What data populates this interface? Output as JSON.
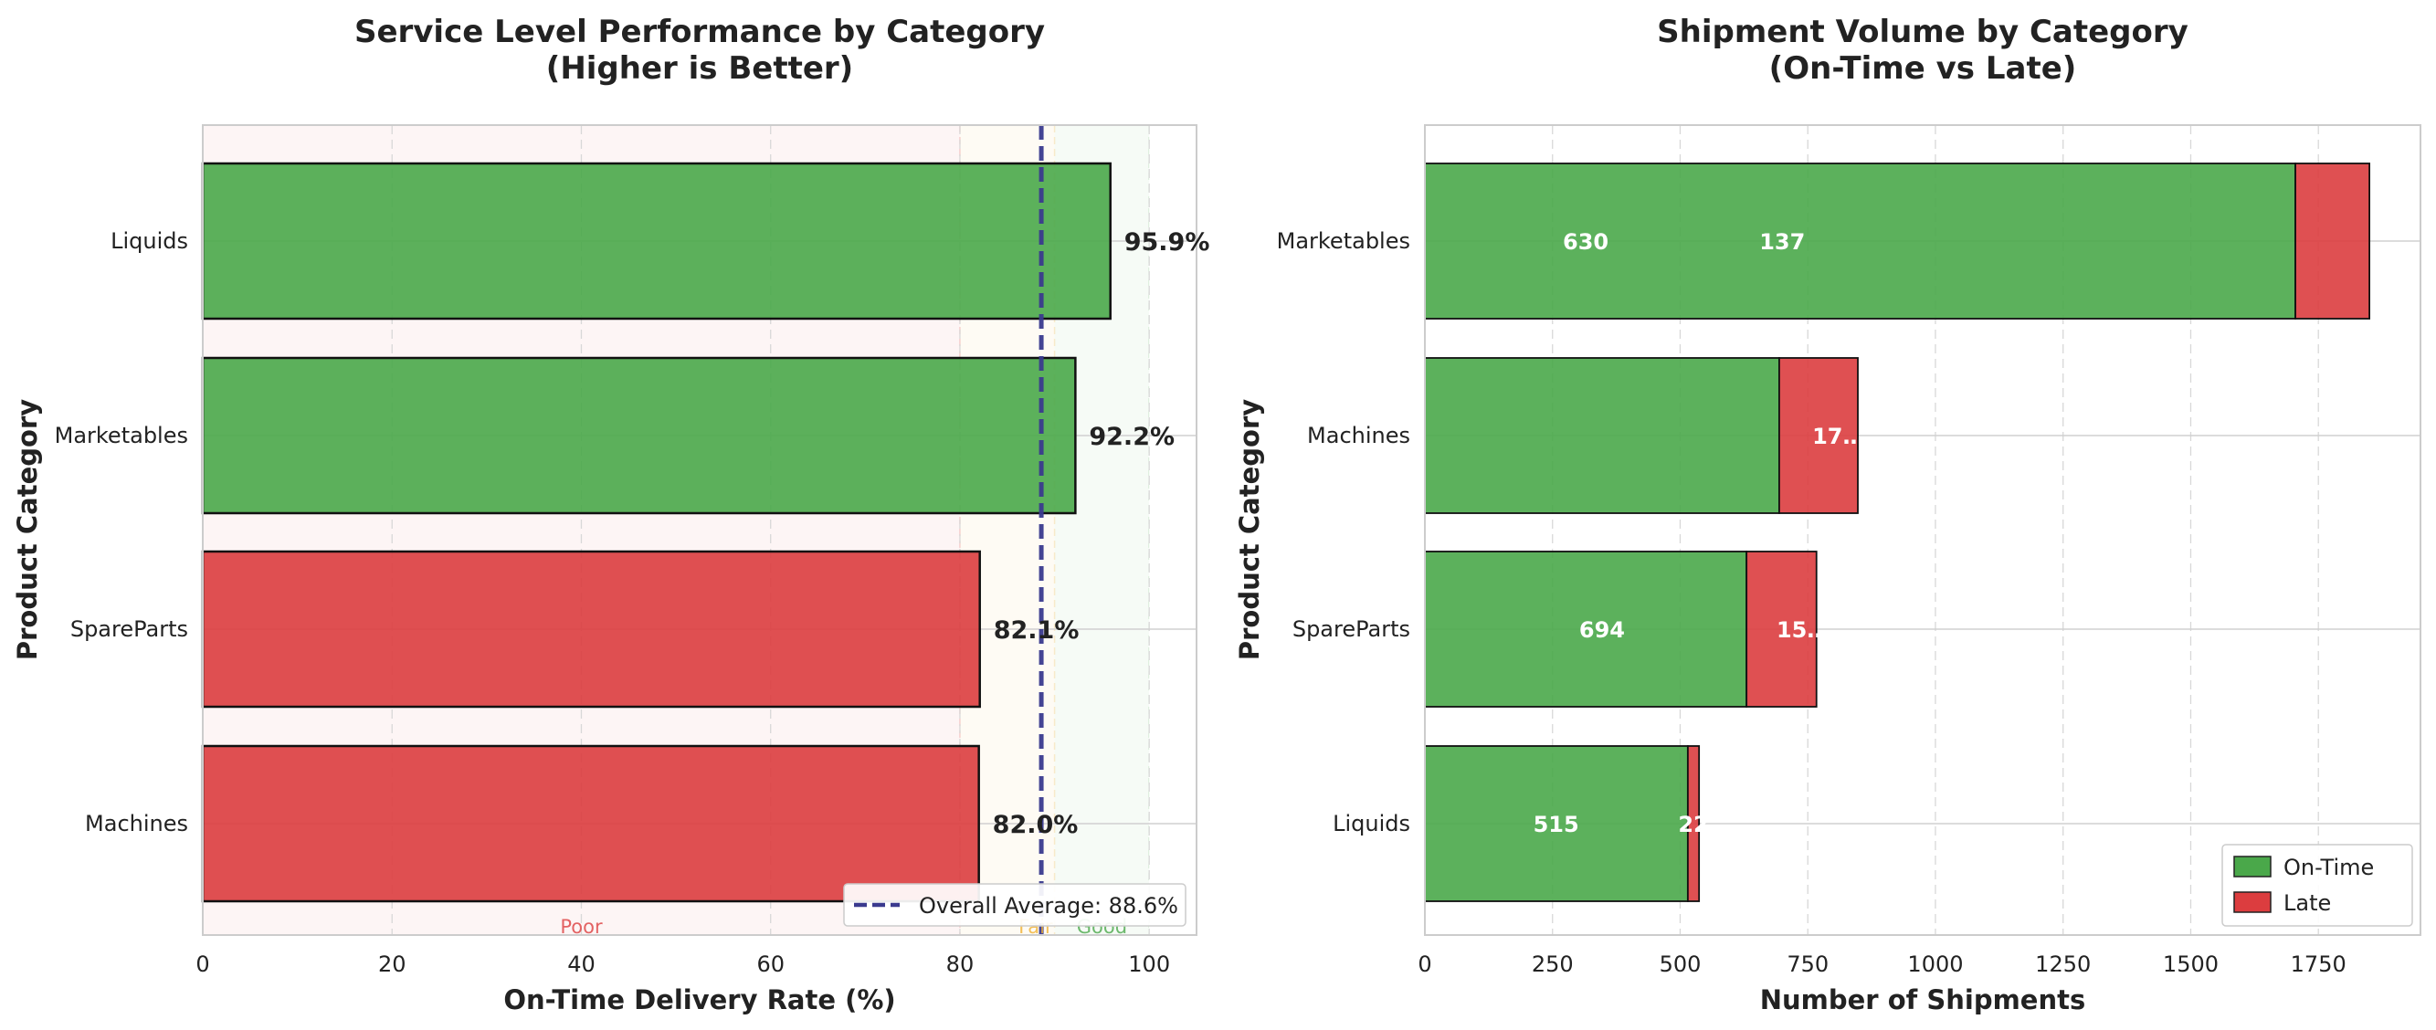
{
  "chart_data": [
    {
      "type": "bar",
      "orientation": "horizontal",
      "title_line1": "Service Level Performance by Category",
      "title_line2": "(Higher is Better)",
      "xlabel": "On-Time Delivery Rate (%)",
      "ylabel": "Product Category",
      "categories": [
        "Liquids",
        "Marketables",
        "SpareParts",
        "Machines"
      ],
      "values": [
        95.9,
        92.2,
        82.1,
        82.0
      ],
      "value_labels": [
        "95.9%",
        "92.2%",
        "82.1%",
        "82.0%"
      ],
      "bar_colors": [
        "#4aa84a",
        "#4aa84a",
        "#dc3d3f",
        "#dc3d3f"
      ],
      "xlim": [
        0,
        105
      ],
      "xticks": [
        0,
        20,
        40,
        60,
        80,
        100
      ],
      "xtick_labels": [
        "0",
        "20",
        "40",
        "60",
        "80",
        "100"
      ],
      "zones": [
        {
          "label": "Poor",
          "from": 0,
          "to": 80,
          "color": "#dc3d3f"
        },
        {
          "label": "Fair",
          "from": 80,
          "to": 90,
          "color": "#f0b030"
        },
        {
          "label": "Good",
          "from": 90,
          "to": 100,
          "color": "#4aa84a"
        }
      ],
      "average": 88.6,
      "average_label": "Overall Average: 88.6%",
      "average_color": "#3a3a8e",
      "legend_position": "lower-right",
      "grid": true
    },
    {
      "type": "bar",
      "orientation": "horizontal",
      "stacked": true,
      "title_line1": "Shipment Volume by Category",
      "title_line2": "(On-Time vs Late)",
      "xlabel": "Number of Shipments",
      "ylabel": "Product Category",
      "categories": [
        "Marketables",
        "Machines",
        "SpareParts",
        "Liquids"
      ],
      "series": [
        {
          "name": "On-Time",
          "color": "#4aa84a",
          "values": [
            1705,
            694,
            630,
            515
          ]
        },
        {
          "name": "Late",
          "color": "#dc3d3f",
          "values": [
            145,
            154,
            137,
            22
          ]
        }
      ],
      "annotations": [
        {
          "text": "630",
          "x": 315,
          "row": 0
        },
        {
          "text": "137",
          "x": 700,
          "row": 0
        },
        {
          "text": "17…",
          "x": 810,
          "row": 1
        },
        {
          "text": "694",
          "x": 347,
          "row": 2
        },
        {
          "text": "15…",
          "x": 740,
          "row": 2
        },
        {
          "text": "515",
          "x": 257,
          "row": 3
        },
        {
          "text": "22",
          "x": 526,
          "row": 3
        }
      ],
      "xlim": [
        0,
        1950
      ],
      "xticks": [
        0,
        250,
        500,
        750,
        1000,
        1250,
        1500,
        1750
      ],
      "xtick_labels": [
        "0",
        "250",
        "500",
        "750",
        "1000",
        "1250",
        "1500",
        "1750"
      ],
      "legend_position": "lower-right",
      "grid": true
    }
  ]
}
